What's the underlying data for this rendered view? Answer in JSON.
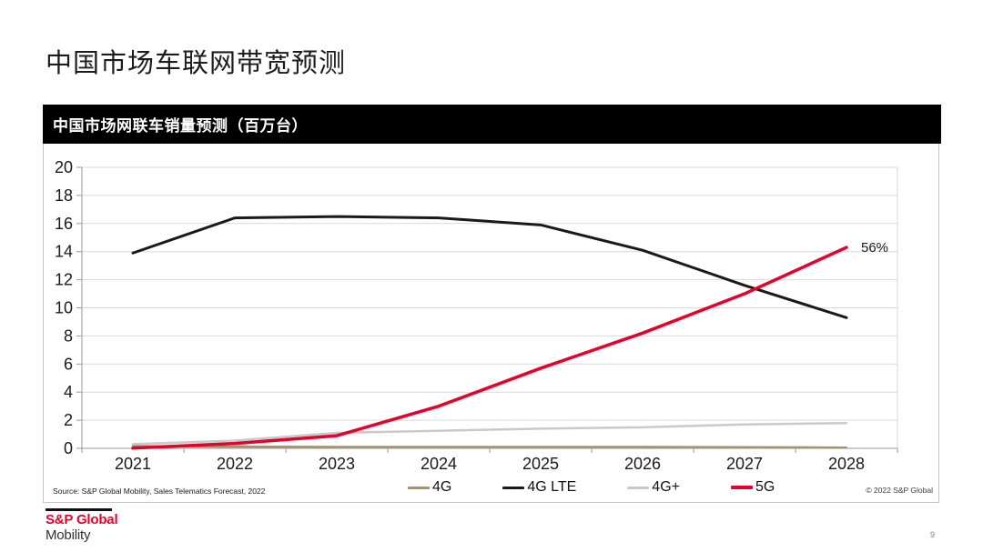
{
  "title": "中国市场车联网带宽预测",
  "chart_header": "中国市场网联车销量预测（百万台）",
  "source": "Source: S&P Global Mobility, Sales Telematics Forecast, 2022",
  "copyright": "© 2022 S&P Global",
  "page_number": "9",
  "logo": {
    "brand": "S&P Global",
    "division": "Mobility"
  },
  "colors": {
    "header_bg": "#000000",
    "header_text": "#ffffff",
    "accent_red": "#e4002b",
    "gridline": "#d9d9d9",
    "axis": "#9a9a9a",
    "card_border": "#c6c6c6"
  },
  "chart_data": {
    "type": "line",
    "title": "中国市场网联车销量预测（百万台）",
    "xlabel": "",
    "ylabel": "",
    "x": [
      "2021",
      "2022",
      "2023",
      "2024",
      "2025",
      "2026",
      "2027",
      "2028"
    ],
    "series": [
      {
        "name": "4G",
        "color": "#a6916f",
        "stroke_width": 2.5,
        "values": [
          0.15,
          0.12,
          0.1,
          0.1,
          0.1,
          0.1,
          0.08,
          0.05
        ]
      },
      {
        "name": "4G LTE",
        "color": "#1a1a1a",
        "stroke_width": 3,
        "values": [
          13.9,
          16.4,
          16.5,
          16.4,
          15.9,
          14.1,
          11.6,
          9.3
        ]
      },
      {
        "name": "4G+",
        "color": "#c9c9c9",
        "stroke_width": 2.5,
        "values": [
          0.3,
          0.55,
          1.1,
          1.25,
          1.4,
          1.5,
          1.7,
          1.8
        ]
      },
      {
        "name": "5G",
        "color": "#e4002b",
        "stroke_width": 3.5,
        "values": [
          0.02,
          0.35,
          0.9,
          3.0,
          5.7,
          8.2,
          11.0,
          14.3
        ]
      }
    ],
    "ylim": [
      0,
      20
    ],
    "ytick_step": 2,
    "grid": true,
    "legend_position": "bottom",
    "annotations": [
      {
        "text": "56%",
        "series": "5G",
        "x": "2028",
        "value": 14.3
      }
    ]
  }
}
